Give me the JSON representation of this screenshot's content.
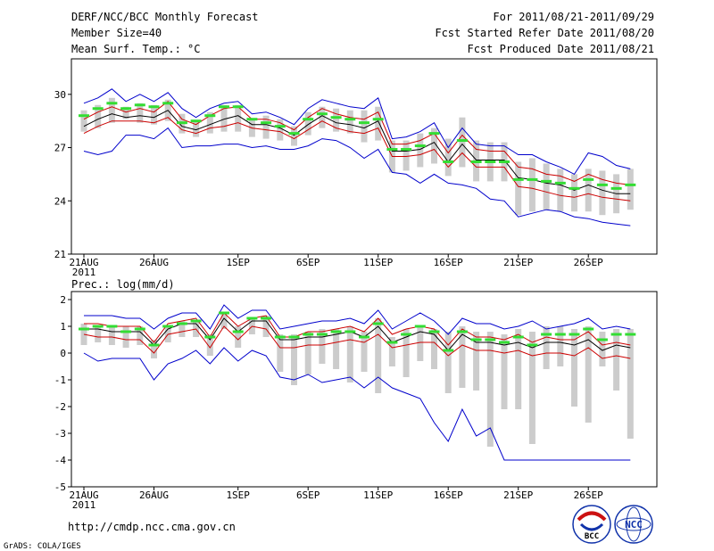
{
  "header": {
    "title": "DERF/NCC/BCC Monthly Forecast",
    "member": "Member Size=40",
    "variable": "Mean Surf. Temp.: °C",
    "range": "For 2011/08/21-2011/09/29",
    "started": "Fcst Started Refer Date 2011/08/20",
    "produced": "Fcst Produced Date 2011/08/21",
    "lower_title": "Prec.: log(mm/d)",
    "url": "http://cmdp.ncc.cma.gov.cn",
    "credit": "GrADS: COLA/IGES",
    "logo_left": "BCC",
    "logo_right": "NCC"
  },
  "colors": {
    "obs": "#33dd33",
    "box": "#cccccc",
    "mean": "#000000",
    "spread": "#cc0000",
    "envelope": "#0000cc"
  },
  "chart_data": [
    {
      "type": "line",
      "title": "Mean Surf. Temp.: °C",
      "categories": [
        "21AUG",
        "22AUG",
        "23AUG",
        "24AUG",
        "25AUG",
        "26AUG",
        "27AUG",
        "28AUG",
        "29AUG",
        "30AUG",
        "31AUG",
        "1SEP",
        "2SEP",
        "3SEP",
        "4SEP",
        "5SEP",
        "6SEP",
        "7SEP",
        "8SEP",
        "9SEP",
        "10SEP",
        "11SEP",
        "12SEP",
        "13SEP",
        "14SEP",
        "15SEP",
        "16SEP",
        "17SEP",
        "18SEP",
        "19SEP",
        "20SEP",
        "21SEP",
        "22SEP",
        "23SEP",
        "24SEP",
        "25SEP",
        "26SEP",
        "27SEP",
        "28SEP",
        "29SEP"
      ],
      "xtick_labels": [
        "21AUG",
        "26AUG",
        "1SEP",
        "6SEP",
        "11SEP",
        "16SEP",
        "21SEP",
        "26SEP"
      ],
      "xtick_index": [
        0,
        5,
        11,
        16,
        21,
        26,
        31,
        36
      ],
      "year_label": "2011",
      "ylim": [
        21,
        32
      ],
      "yticks": [
        21,
        24,
        27,
        30
      ],
      "series": [
        {
          "name": "Ensemble max",
          "values": [
            29.5,
            29.8,
            30.3,
            29.6,
            30.0,
            29.6,
            30.1,
            29.2,
            28.7,
            29.2,
            29.5,
            29.6,
            28.9,
            29.0,
            28.7,
            28.3,
            29.2,
            29.7,
            29.5,
            29.3,
            29.2,
            29.8,
            27.5,
            27.6,
            27.9,
            28.4,
            27.0,
            28.1,
            27.2,
            27.1,
            27.1,
            26.6,
            26.6,
            26.2,
            25.9,
            25.5,
            26.7,
            26.5,
            26.0,
            25.8
          ]
        },
        {
          "name": "Upper spread",
          "values": [
            28.6,
            29.0,
            29.3,
            29.0,
            29.2,
            29.0,
            29.6,
            28.6,
            28.3,
            28.8,
            29.2,
            29.3,
            28.6,
            28.6,
            28.4,
            28.0,
            28.7,
            29.2,
            28.9,
            28.7,
            28.6,
            29.0,
            27.2,
            27.2,
            27.4,
            27.8,
            26.7,
            27.7,
            26.9,
            26.8,
            26.8,
            25.9,
            25.8,
            25.5,
            25.4,
            25.1,
            25.5,
            25.2,
            25.0,
            24.9
          ]
        },
        {
          "name": "Ensemble mean",
          "values": [
            28.2,
            28.6,
            28.9,
            28.7,
            28.8,
            28.7,
            29.1,
            28.2,
            28.0,
            28.3,
            28.6,
            28.8,
            28.3,
            28.3,
            28.1,
            27.7,
            28.3,
            28.8,
            28.4,
            28.3,
            28.1,
            28.5,
            26.8,
            26.8,
            26.9,
            27.3,
            26.2,
            27.2,
            26.3,
            26.3,
            26.3,
            25.3,
            25.2,
            25.0,
            24.9,
            24.6,
            24.9,
            24.6,
            24.4,
            24.4
          ]
        },
        {
          "name": "Lower spread",
          "values": [
            27.8,
            28.2,
            28.5,
            28.5,
            28.5,
            28.4,
            28.7,
            28.0,
            27.8,
            28.1,
            28.2,
            28.4,
            28.1,
            28.0,
            27.9,
            27.5,
            28.0,
            28.5,
            28.1,
            27.9,
            27.8,
            28.1,
            26.5,
            26.5,
            26.6,
            26.9,
            25.9,
            26.7,
            25.9,
            25.9,
            25.9,
            24.8,
            24.7,
            24.5,
            24.3,
            24.2,
            24.4,
            24.2,
            24.1,
            24.0
          ]
        },
        {
          "name": "Ensemble min",
          "values": [
            26.8,
            26.6,
            26.8,
            27.7,
            27.7,
            27.5,
            28.1,
            27.0,
            27.1,
            27.1,
            27.2,
            27.2,
            27.0,
            27.1,
            26.9,
            26.9,
            27.1,
            27.5,
            27.4,
            27.0,
            26.4,
            26.9,
            25.6,
            25.5,
            25.0,
            25.5,
            25.0,
            24.9,
            24.7,
            24.1,
            24.0,
            23.1,
            23.3,
            23.5,
            23.4,
            23.1,
            23.0,
            22.8,
            22.7,
            22.6
          ]
        },
        {
          "name": "Observed",
          "values": [
            28.8,
            29.2,
            29.5,
            29.2,
            29.4,
            29.3,
            29.5,
            28.4,
            28.5,
            28.8,
            29.3,
            29.3,
            28.6,
            28.4,
            28.2,
            27.8,
            28.6,
            28.9,
            28.7,
            28.6,
            28.4,
            28.6,
            26.9,
            26.9,
            27.1,
            27.8,
            26.2,
            27.4,
            26.2,
            26.2,
            26.2,
            25.2,
            25.2,
            25.1,
            25.0,
            24.7,
            25.2,
            24.9,
            24.7,
            24.9
          ]
        }
      ],
      "box_top": [
        29.1,
        29.4,
        29.8,
        29.3,
        29.5,
        29.4,
        29.7,
        28.9,
        28.5,
        29.0,
        29.4,
        29.4,
        28.6,
        28.8,
        28.6,
        28.2,
        29.0,
        29.3,
        29.2,
        29.1,
        29.1,
        29.3,
        27.4,
        27.4,
        27.8,
        28.1,
        27.5,
        28.7,
        27.4,
        27.3,
        27.3,
        26.2,
        26.4,
        26.1,
        25.8,
        25.5,
        25.8,
        25.7,
        25.5,
        25.8
      ],
      "box_bottom": [
        27.9,
        28.1,
        28.4,
        28.6,
        28.4,
        28.3,
        28.5,
        27.8,
        27.6,
        27.8,
        27.9,
        27.9,
        27.6,
        27.5,
        27.4,
        27.1,
        27.7,
        28.1,
        27.9,
        27.8,
        27.3,
        27.4,
        25.6,
        25.7,
        25.9,
        26.1,
        25.4,
        25.9,
        25.1,
        25.1,
        25.1,
        23.2,
        23.4,
        23.5,
        23.4,
        23.4,
        23.4,
        23.2,
        23.3,
        23.5
      ]
    },
    {
      "type": "line",
      "title": "Prec.: log(mm/d)",
      "categories": [
        "21AUG",
        "22AUG",
        "23AUG",
        "24AUG",
        "25AUG",
        "26AUG",
        "27AUG",
        "28AUG",
        "29AUG",
        "30AUG",
        "31AUG",
        "1SEP",
        "2SEP",
        "3SEP",
        "4SEP",
        "5SEP",
        "6SEP",
        "7SEP",
        "8SEP",
        "9SEP",
        "10SEP",
        "11SEP",
        "12SEP",
        "13SEP",
        "14SEP",
        "15SEP",
        "16SEP",
        "17SEP",
        "18SEP",
        "19SEP",
        "20SEP",
        "21SEP",
        "22SEP",
        "23SEP",
        "24SEP",
        "25SEP",
        "26SEP",
        "27SEP",
        "28SEP",
        "29SEP"
      ],
      "xtick_labels": [
        "21AUG",
        "26AUG",
        "1SEP",
        "6SEP",
        "11SEP",
        "16SEP",
        "21SEP",
        "26SEP"
      ],
      "xtick_index": [
        0,
        5,
        11,
        16,
        21,
        26,
        31,
        36
      ],
      "year_label": "2011",
      "ylim": [
        -5,
        2.3
      ],
      "yticks": [
        -5,
        -4,
        -3,
        -2,
        -1,
        0,
        1,
        2
      ],
      "series": [
        {
          "name": "Ensemble max",
          "values": [
            1.4,
            1.4,
            1.4,
            1.3,
            1.3,
            0.9,
            1.3,
            1.5,
            1.5,
            0.9,
            1.8,
            1.3,
            1.6,
            1.6,
            0.9,
            1.0,
            1.1,
            1.2,
            1.2,
            1.3,
            1.1,
            1.6,
            0.9,
            1.2,
            1.5,
            1.2,
            0.7,
            1.3,
            1.1,
            1.1,
            0.9,
            1.0,
            1.2,
            0.9,
            1.0,
            1.1,
            1.3,
            0.9,
            1.0,
            0.9
          ]
        },
        {
          "name": "Upper spread",
          "values": [
            1.1,
            1.1,
            1.0,
            1.0,
            1.0,
            0.4,
            1.1,
            1.2,
            1.3,
            0.6,
            1.5,
            1.0,
            1.3,
            1.4,
            0.6,
            0.6,
            0.8,
            0.8,
            0.9,
            1.0,
            0.8,
            1.3,
            0.7,
            0.9,
            1.0,
            0.9,
            0.3,
            0.9,
            0.6,
            0.6,
            0.5,
            0.7,
            0.4,
            0.6,
            0.5,
            0.5,
            0.8,
            0.3,
            0.4,
            0.3
          ]
        },
        {
          "name": "Ensemble mean",
          "values": [
            0.9,
            0.9,
            0.8,
            0.8,
            0.8,
            0.3,
            0.9,
            1.1,
            1.1,
            0.5,
            1.3,
            0.8,
            1.2,
            1.2,
            0.5,
            0.5,
            0.6,
            0.6,
            0.7,
            0.8,
            0.6,
            1.0,
            0.4,
            0.6,
            0.8,
            0.7,
            0.1,
            0.7,
            0.4,
            0.4,
            0.3,
            0.4,
            0.2,
            0.4,
            0.4,
            0.3,
            0.5,
            0.1,
            0.3,
            0.2
          ]
        },
        {
          "name": "Lower spread",
          "values": [
            0.7,
            0.6,
            0.6,
            0.5,
            0.5,
            0.0,
            0.7,
            0.8,
            0.9,
            0.2,
            1.0,
            0.5,
            1.0,
            0.9,
            0.2,
            0.2,
            0.3,
            0.3,
            0.4,
            0.5,
            0.4,
            0.7,
            0.2,
            0.3,
            0.4,
            0.4,
            -0.1,
            0.3,
            0.1,
            0.1,
            0.0,
            0.1,
            -0.1,
            0.0,
            0.0,
            -0.1,
            0.2,
            -0.2,
            -0.1,
            -0.2
          ]
        },
        {
          "name": "Ensemble min",
          "values": [
            0.0,
            -0.3,
            -0.2,
            -0.2,
            -0.2,
            -1.0,
            -0.4,
            -0.2,
            0.1,
            -0.4,
            0.2,
            -0.3,
            0.1,
            -0.1,
            -0.9,
            -1.0,
            -0.8,
            -1.1,
            -1.0,
            -0.9,
            -1.3,
            -0.9,
            -1.3,
            -1.5,
            -1.7,
            -2.6,
            -3.3,
            -2.1,
            -3.1,
            -2.8,
            -4.0,
            -4.0,
            -4.0,
            -4.0,
            -4.0,
            -4.0,
            -4.0,
            -4.0,
            -4.0,
            -4.0
          ]
        },
        {
          "name": "Observed",
          "values": [
            0.9,
            1.0,
            1.0,
            0.8,
            0.9,
            0.3,
            1.0,
            1.1,
            1.2,
            0.6,
            1.5,
            0.8,
            1.3,
            1.3,
            0.6,
            0.6,
            0.7,
            0.7,
            0.8,
            0.8,
            0.6,
            1.1,
            0.4,
            0.7,
            1.0,
            0.8,
            0.1,
            0.8,
            0.5,
            0.5,
            0.4,
            0.6,
            0.3,
            0.7,
            0.7,
            0.7,
            0.9,
            0.5,
            0.7,
            0.7
          ]
        }
      ],
      "box_top": [
        1.1,
        1.0,
        1.0,
        1.0,
        1.0,
        0.5,
        1.0,
        1.2,
        1.2,
        0.7,
        1.5,
        1.0,
        1.3,
        1.4,
        0.7,
        0.7,
        0.8,
        0.9,
        0.9,
        1.0,
        0.8,
        1.3,
        0.6,
        0.9,
        1.0,
        0.9,
        0.8,
        1.0,
        0.8,
        0.8,
        0.7,
        0.9,
        0.8,
        1.0,
        1.0,
        0.9,
        1.0,
        0.8,
        0.9,
        0.9
      ],
      "box_bottom": [
        0.3,
        0.4,
        0.3,
        0.2,
        0.3,
        -0.2,
        0.4,
        0.6,
        0.6,
        -0.1,
        0.9,
        0.2,
        0.7,
        0.6,
        -0.7,
        -1.2,
        -0.8,
        -0.4,
        -0.6,
        -1.1,
        -0.7,
        -1.5,
        -0.5,
        -0.9,
        -0.3,
        -0.6,
        -1.5,
        -1.3,
        -1.4,
        -3.5,
        -2.1,
        -2.1,
        -3.4,
        -0.6,
        -0.5,
        -2.0,
        -2.6,
        -0.5,
        -1.4,
        -3.2
      ]
    }
  ]
}
